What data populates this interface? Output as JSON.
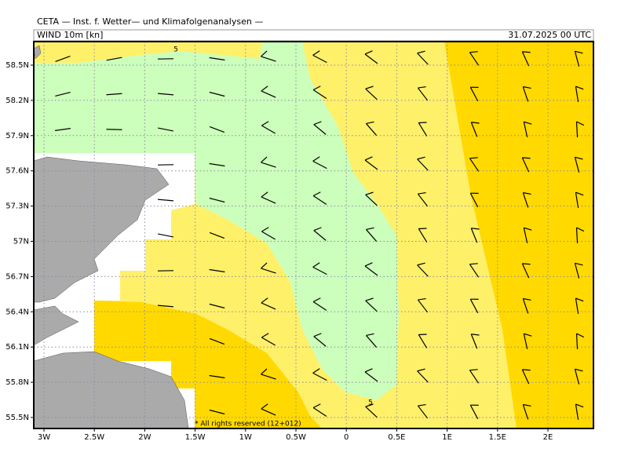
{
  "header": {
    "title": "CETA — Inst. f. Wetter— und Klimafolgenanalysen —",
    "field": "WIND 10m [kn]",
    "valid_time": "31.07.2025 00 UTC"
  },
  "map": {
    "x_labels": [
      "3W",
      "2.5W",
      "2W",
      "1.5W",
      "1W",
      "0.5W",
      "0",
      "0.5E",
      "1E",
      "1.5E",
      "2E"
    ],
    "y_labels": [
      "58.5N",
      "58.2N",
      "57.9N",
      "57.6N",
      "57.3N",
      "57N",
      "56.7N",
      "56.4N",
      "56.1N",
      "55.8N",
      "55.5N"
    ],
    "contour_labels": [
      "5",
      "5"
    ],
    "copyright": "* All rights reserved (12+012)"
  }
}
